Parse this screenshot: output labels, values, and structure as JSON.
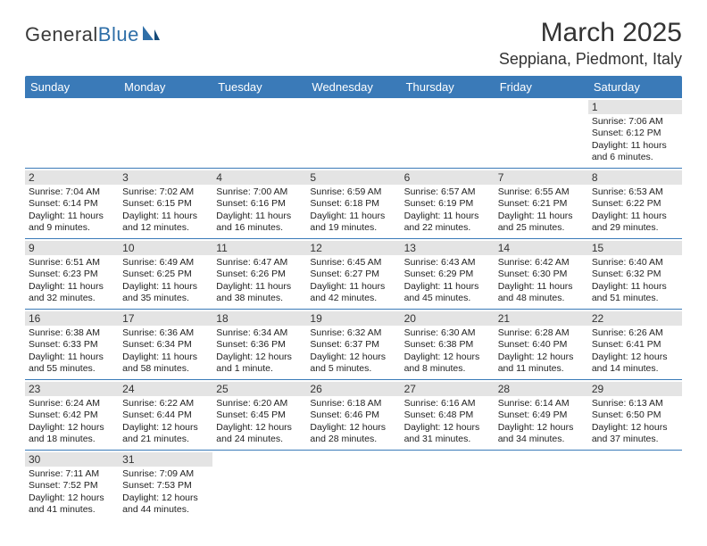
{
  "brand": {
    "part1": "General",
    "part2": "Blue"
  },
  "title": "March 2025",
  "location": "Seppiana, Piedmont, Italy",
  "colors": {
    "header_bg": "#3a7ab8",
    "daybar_bg": "#e4e4e4",
    "border": "#3a7ab8",
    "logo_blue": "#2f6fa8"
  },
  "day_headers": [
    "Sunday",
    "Monday",
    "Tuesday",
    "Wednesday",
    "Thursday",
    "Friday",
    "Saturday"
  ],
  "weeks": [
    [
      null,
      null,
      null,
      null,
      null,
      null,
      {
        "n": "1",
        "sr": "Sunrise: 7:06 AM",
        "ss": "Sunset: 6:12 PM",
        "dl": "Daylight: 11 hours and 6 minutes."
      }
    ],
    [
      {
        "n": "2",
        "sr": "Sunrise: 7:04 AM",
        "ss": "Sunset: 6:14 PM",
        "dl": "Daylight: 11 hours and 9 minutes."
      },
      {
        "n": "3",
        "sr": "Sunrise: 7:02 AM",
        "ss": "Sunset: 6:15 PM",
        "dl": "Daylight: 11 hours and 12 minutes."
      },
      {
        "n": "4",
        "sr": "Sunrise: 7:00 AM",
        "ss": "Sunset: 6:16 PM",
        "dl": "Daylight: 11 hours and 16 minutes."
      },
      {
        "n": "5",
        "sr": "Sunrise: 6:59 AM",
        "ss": "Sunset: 6:18 PM",
        "dl": "Daylight: 11 hours and 19 minutes."
      },
      {
        "n": "6",
        "sr": "Sunrise: 6:57 AM",
        "ss": "Sunset: 6:19 PM",
        "dl": "Daylight: 11 hours and 22 minutes."
      },
      {
        "n": "7",
        "sr": "Sunrise: 6:55 AM",
        "ss": "Sunset: 6:21 PM",
        "dl": "Daylight: 11 hours and 25 minutes."
      },
      {
        "n": "8",
        "sr": "Sunrise: 6:53 AM",
        "ss": "Sunset: 6:22 PM",
        "dl": "Daylight: 11 hours and 29 minutes."
      }
    ],
    [
      {
        "n": "9",
        "sr": "Sunrise: 6:51 AM",
        "ss": "Sunset: 6:23 PM",
        "dl": "Daylight: 11 hours and 32 minutes."
      },
      {
        "n": "10",
        "sr": "Sunrise: 6:49 AM",
        "ss": "Sunset: 6:25 PM",
        "dl": "Daylight: 11 hours and 35 minutes."
      },
      {
        "n": "11",
        "sr": "Sunrise: 6:47 AM",
        "ss": "Sunset: 6:26 PM",
        "dl": "Daylight: 11 hours and 38 minutes."
      },
      {
        "n": "12",
        "sr": "Sunrise: 6:45 AM",
        "ss": "Sunset: 6:27 PM",
        "dl": "Daylight: 11 hours and 42 minutes."
      },
      {
        "n": "13",
        "sr": "Sunrise: 6:43 AM",
        "ss": "Sunset: 6:29 PM",
        "dl": "Daylight: 11 hours and 45 minutes."
      },
      {
        "n": "14",
        "sr": "Sunrise: 6:42 AM",
        "ss": "Sunset: 6:30 PM",
        "dl": "Daylight: 11 hours and 48 minutes."
      },
      {
        "n": "15",
        "sr": "Sunrise: 6:40 AM",
        "ss": "Sunset: 6:32 PM",
        "dl": "Daylight: 11 hours and 51 minutes."
      }
    ],
    [
      {
        "n": "16",
        "sr": "Sunrise: 6:38 AM",
        "ss": "Sunset: 6:33 PM",
        "dl": "Daylight: 11 hours and 55 minutes."
      },
      {
        "n": "17",
        "sr": "Sunrise: 6:36 AM",
        "ss": "Sunset: 6:34 PM",
        "dl": "Daylight: 11 hours and 58 minutes."
      },
      {
        "n": "18",
        "sr": "Sunrise: 6:34 AM",
        "ss": "Sunset: 6:36 PM",
        "dl": "Daylight: 12 hours and 1 minute."
      },
      {
        "n": "19",
        "sr": "Sunrise: 6:32 AM",
        "ss": "Sunset: 6:37 PM",
        "dl": "Daylight: 12 hours and 5 minutes."
      },
      {
        "n": "20",
        "sr": "Sunrise: 6:30 AM",
        "ss": "Sunset: 6:38 PM",
        "dl": "Daylight: 12 hours and 8 minutes."
      },
      {
        "n": "21",
        "sr": "Sunrise: 6:28 AM",
        "ss": "Sunset: 6:40 PM",
        "dl": "Daylight: 12 hours and 11 minutes."
      },
      {
        "n": "22",
        "sr": "Sunrise: 6:26 AM",
        "ss": "Sunset: 6:41 PM",
        "dl": "Daylight: 12 hours and 14 minutes."
      }
    ],
    [
      {
        "n": "23",
        "sr": "Sunrise: 6:24 AM",
        "ss": "Sunset: 6:42 PM",
        "dl": "Daylight: 12 hours and 18 minutes."
      },
      {
        "n": "24",
        "sr": "Sunrise: 6:22 AM",
        "ss": "Sunset: 6:44 PM",
        "dl": "Daylight: 12 hours and 21 minutes."
      },
      {
        "n": "25",
        "sr": "Sunrise: 6:20 AM",
        "ss": "Sunset: 6:45 PM",
        "dl": "Daylight: 12 hours and 24 minutes."
      },
      {
        "n": "26",
        "sr": "Sunrise: 6:18 AM",
        "ss": "Sunset: 6:46 PM",
        "dl": "Daylight: 12 hours and 28 minutes."
      },
      {
        "n": "27",
        "sr": "Sunrise: 6:16 AM",
        "ss": "Sunset: 6:48 PM",
        "dl": "Daylight: 12 hours and 31 minutes."
      },
      {
        "n": "28",
        "sr": "Sunrise: 6:14 AM",
        "ss": "Sunset: 6:49 PM",
        "dl": "Daylight: 12 hours and 34 minutes."
      },
      {
        "n": "29",
        "sr": "Sunrise: 6:13 AM",
        "ss": "Sunset: 6:50 PM",
        "dl": "Daylight: 12 hours and 37 minutes."
      }
    ],
    [
      {
        "n": "30",
        "sr": "Sunrise: 7:11 AM",
        "ss": "Sunset: 7:52 PM",
        "dl": "Daylight: 12 hours and 41 minutes."
      },
      {
        "n": "31",
        "sr": "Sunrise: 7:09 AM",
        "ss": "Sunset: 7:53 PM",
        "dl": "Daylight: 12 hours and 44 minutes."
      },
      null,
      null,
      null,
      null,
      null
    ]
  ]
}
